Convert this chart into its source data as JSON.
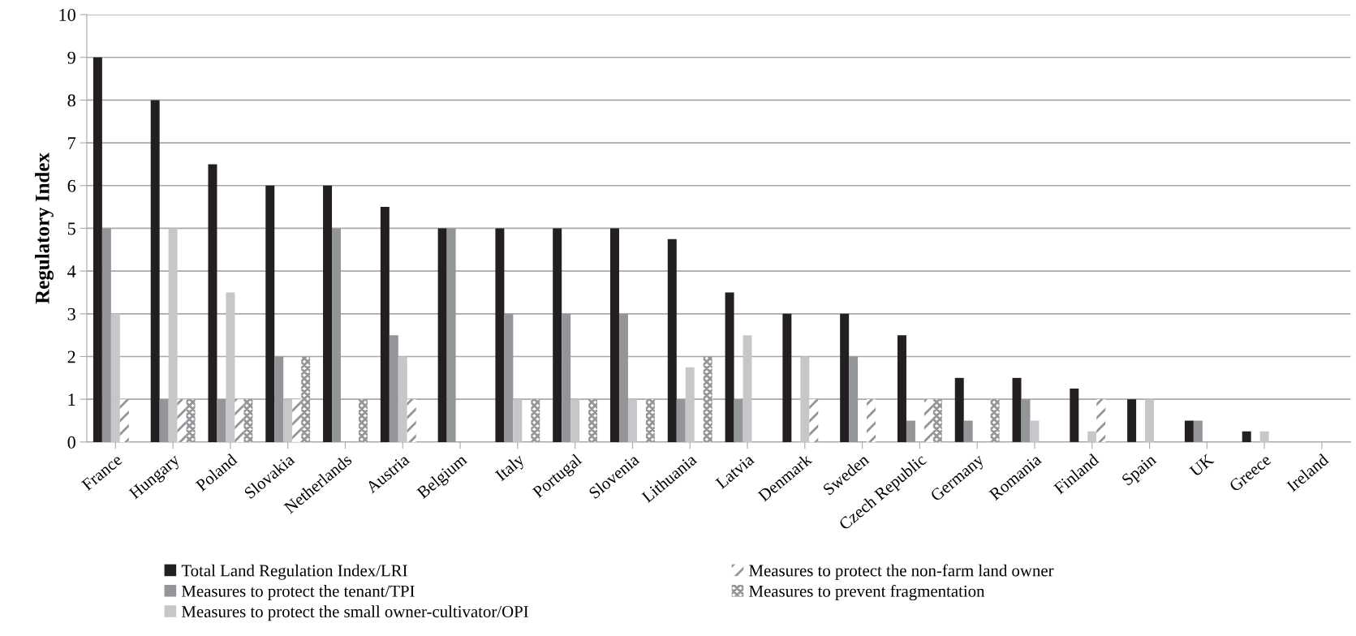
{
  "chart_data": {
    "type": "bar",
    "ylabel": "Regulatory Index",
    "categories": [
      "France",
      "Hungary",
      "Poland",
      "Slovakia",
      "Netherlands",
      "Austria",
      "Belgium",
      "Italy",
      "Portugal",
      "Slovenia",
      "Lithuania",
      "Latvia",
      "Denmark",
      "Sweden",
      "Czech Republic",
      "Germany",
      "Romania",
      "Finland",
      "Spain",
      "UK",
      "Greece",
      "Ireland"
    ],
    "series": [
      {
        "name": "Total Land Regulation Index/LRI",
        "color": "#231f20",
        "values": [
          9,
          8,
          6.5,
          6,
          6,
          5.5,
          5,
          5,
          5,
          5,
          4.75,
          3.5,
          3,
          3,
          2.5,
          1.5,
          1.5,
          1.25,
          1,
          0.5,
          0.25,
          0
        ]
      },
      {
        "name": "Measures to protect the tenant/TPI",
        "color": "#939598",
        "values": [
          5,
          1,
          1,
          2,
          5,
          2.5,
          5,
          3,
          3,
          3,
          1,
          1,
          0,
          2,
          0.5,
          0.5,
          1,
          0,
          0,
          0.5,
          0,
          0
        ]
      },
      {
        "name": "Measures to protect the small owner-cultivator/OPI",
        "color": "#c6c7c9",
        "values": [
          3,
          5,
          3.5,
          1,
          0,
          2,
          0,
          1,
          1,
          1,
          1.75,
          2.5,
          2,
          0,
          0,
          0,
          0.5,
          0.25,
          1,
          0,
          0.25,
          0
        ]
      },
      {
        "name": "Measures to protect the non-farm land owner",
        "color": "#939598",
        "values": [
          1,
          1,
          1,
          1,
          0,
          1,
          0,
          0,
          0,
          0,
          0,
          0,
          1,
          1,
          1,
          0,
          0,
          1,
          0,
          0,
          0,
          0
        ]
      },
      {
        "name": "Measures to prevent fragmentation",
        "color": "#939598",
        "values": [
          0,
          1,
          1,
          2,
          1,
          0,
          0,
          1,
          1,
          1,
          2,
          0,
          0,
          0,
          1,
          1,
          0,
          0,
          0,
          0,
          0,
          0
        ]
      }
    ],
    "ylim": [
      0,
      10
    ],
    "yticks": [
      0,
      1,
      2,
      3,
      4,
      5,
      6,
      7,
      8,
      9,
      10
    ],
    "grid": "y",
    "legend": "bottom"
  }
}
